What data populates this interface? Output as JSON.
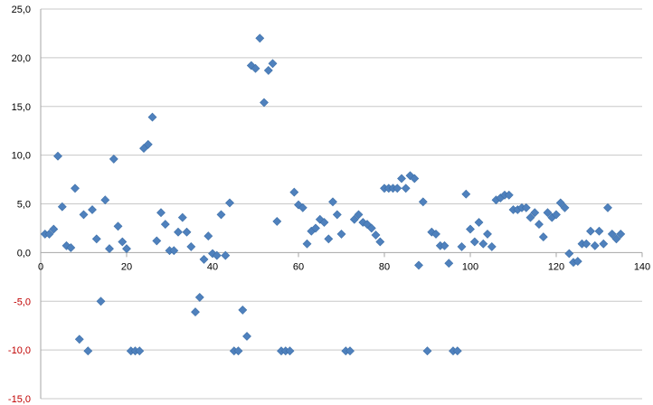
{
  "chart_data": {
    "type": "scatter",
    "title": "",
    "xlabel": "",
    "ylabel": "",
    "xlim": [
      0,
      140
    ],
    "ylim": [
      -15,
      25
    ],
    "x_ticks": [
      "0",
      "20",
      "40",
      "60",
      "80",
      "100",
      "120",
      "140"
    ],
    "y_ticks": [
      "25,0",
      "20,0",
      "15,0",
      "10,0",
      "5,0",
      "0,0",
      "-5,0",
      "-10,0",
      "-15,0"
    ],
    "grid": true,
    "legend": "none",
    "colors": {
      "marker": "#4f81bd",
      "grid": "#c8c8c8",
      "axis": "#a6a6a6",
      "negative_tick": "#c00000",
      "tick": "#000000"
    },
    "series": [
      {
        "marker": "diamond",
        "points": [
          [
            1,
            1.9
          ],
          [
            2,
            1.9
          ],
          [
            3,
            2.4
          ],
          [
            4,
            9.9
          ],
          [
            5,
            4.7
          ],
          [
            6,
            0.7
          ],
          [
            7,
            0.5
          ],
          [
            8,
            6.6
          ],
          [
            9,
            -8.9
          ],
          [
            10,
            3.9
          ],
          [
            11,
            -10.1
          ],
          [
            12,
            4.4
          ],
          [
            13,
            1.4
          ],
          [
            14,
            -5.0
          ],
          [
            15,
            5.4
          ],
          [
            16,
            0.4
          ],
          [
            17,
            9.6
          ],
          [
            18,
            2.7
          ],
          [
            19,
            1.1
          ],
          [
            20,
            0.4
          ],
          [
            21,
            -10.1
          ],
          [
            22,
            -10.1
          ],
          [
            23,
            -10.1
          ],
          [
            24,
            10.7
          ],
          [
            25,
            11.1
          ],
          [
            26,
            13.9
          ],
          [
            27,
            1.2
          ],
          [
            28,
            4.1
          ],
          [
            29,
            2.9
          ],
          [
            30,
            0.2
          ],
          [
            31,
            0.2
          ],
          [
            32,
            2.1
          ],
          [
            33,
            3.6
          ],
          [
            34,
            2.1
          ],
          [
            35,
            0.6
          ],
          [
            36,
            -6.1
          ],
          [
            37,
            -4.6
          ],
          [
            38,
            -0.7
          ],
          [
            39,
            1.7
          ],
          [
            40,
            -0.1
          ],
          [
            41,
            -0.3
          ],
          [
            42,
            3.9
          ],
          [
            43,
            -0.3
          ],
          [
            44,
            5.1
          ],
          [
            45,
            -10.1
          ],
          [
            46,
            -10.1
          ],
          [
            47,
            -5.9
          ],
          [
            48,
            -8.6
          ],
          [
            49,
            19.2
          ],
          [
            50,
            18.9
          ],
          [
            51,
            22.0
          ],
          [
            52,
            15.4
          ],
          [
            53,
            18.7
          ],
          [
            54,
            19.4
          ],
          [
            55,
            3.2
          ],
          [
            56,
            -10.1
          ],
          [
            57,
            -10.1
          ],
          [
            58,
            -10.1
          ],
          [
            59,
            6.2
          ],
          [
            60,
            4.9
          ],
          [
            61,
            4.6
          ],
          [
            62,
            0.9
          ],
          [
            63,
            2.2
          ],
          [
            64,
            2.5
          ],
          [
            65,
            3.4
          ],
          [
            66,
            3.1
          ],
          [
            67,
            1.4
          ],
          [
            68,
            5.2
          ],
          [
            69,
            3.9
          ],
          [
            70,
            1.9
          ],
          [
            71,
            -10.1
          ],
          [
            72,
            -10.1
          ],
          [
            73,
            3.4
          ],
          [
            74,
            3.9
          ],
          [
            75,
            3.1
          ],
          [
            76,
            2.9
          ],
          [
            77,
            2.5
          ],
          [
            78,
            1.8
          ],
          [
            79,
            1.1
          ],
          [
            80,
            6.6
          ],
          [
            81,
            6.6
          ],
          [
            82,
            6.6
          ],
          [
            83,
            6.6
          ],
          [
            84,
            7.6
          ],
          [
            85,
            6.6
          ],
          [
            86,
            7.9
          ],
          [
            87,
            7.6
          ],
          [
            88,
            -1.3
          ],
          [
            89,
            5.2
          ],
          [
            90,
            -10.1
          ],
          [
            91,
            2.1
          ],
          [
            92,
            1.9
          ],
          [
            93,
            0.7
          ],
          [
            94,
            0.7
          ],
          [
            95,
            -1.1
          ],
          [
            96,
            -10.1
          ],
          [
            97,
            -10.1
          ],
          [
            98,
            0.6
          ],
          [
            99,
            6.0
          ],
          [
            100,
            2.4
          ],
          [
            101,
            1.1
          ],
          [
            102,
            3.1
          ],
          [
            103,
            0.9
          ],
          [
            104,
            1.9
          ],
          [
            105,
            0.6
          ],
          [
            106,
            5.4
          ],
          [
            107,
            5.6
          ],
          [
            108,
            5.9
          ],
          [
            109,
            5.9
          ],
          [
            110,
            4.4
          ],
          [
            111,
            4.4
          ],
          [
            112,
            4.6
          ],
          [
            113,
            4.6
          ],
          [
            114,
            3.6
          ],
          [
            115,
            4.1
          ],
          [
            116,
            2.9
          ],
          [
            117,
            1.6
          ],
          [
            118,
            4.1
          ],
          [
            119,
            3.6
          ],
          [
            120,
            3.9
          ],
          [
            121,
            5.1
          ],
          [
            122,
            4.6
          ],
          [
            123,
            -0.1
          ],
          [
            124,
            -1.0
          ],
          [
            125,
            -0.9
          ],
          [
            126,
            0.9
          ],
          [
            127,
            0.9
          ],
          [
            128,
            2.2
          ],
          [
            129,
            0.7
          ],
          [
            130,
            2.2
          ],
          [
            131,
            0.9
          ],
          [
            132,
            4.6
          ],
          [
            133,
            1.9
          ],
          [
            134,
            1.4
          ],
          [
            135,
            1.9
          ]
        ]
      }
    ]
  }
}
